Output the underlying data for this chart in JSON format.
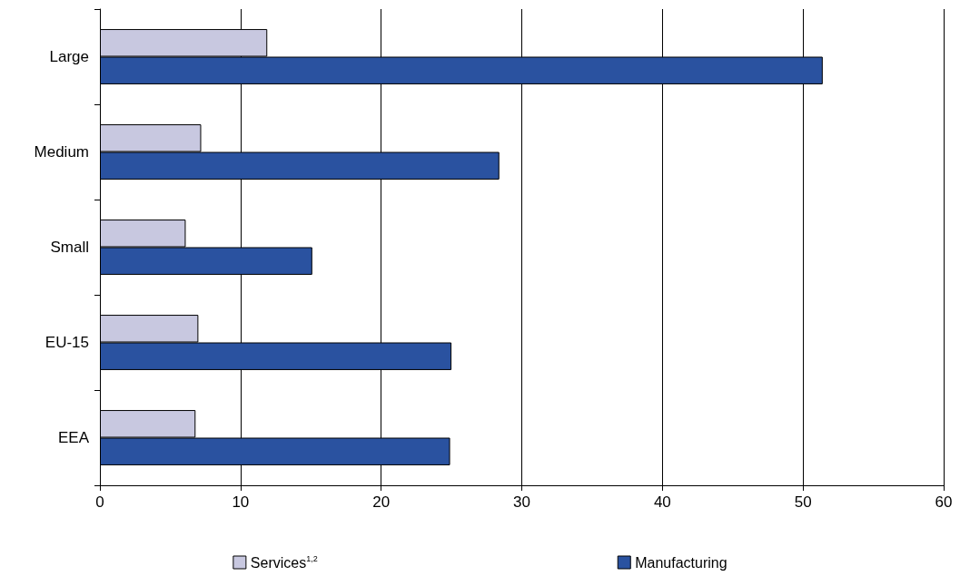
{
  "chart_data": {
    "type": "bar",
    "orientation": "horizontal",
    "categories": [
      "Large",
      "Medium",
      "Small",
      "EU-15",
      "EEA"
    ],
    "series": [
      {
        "name": "Services$^{1,2}$",
        "color": "#c8c8e0",
        "values": [
          11.9,
          7.2,
          6.1,
          7.0,
          6.8
        ]
      },
      {
        "name": "Manufacturing",
        "color": "#2a52a0",
        "values": [
          51.4,
          28.4,
          15.1,
          25.0,
          24.9
        ]
      }
    ],
    "xlim": [
      0,
      60
    ],
    "xticks": [
      0,
      10,
      20,
      30,
      40,
      50,
      60
    ],
    "grid": "x",
    "legend": "bottom"
  }
}
